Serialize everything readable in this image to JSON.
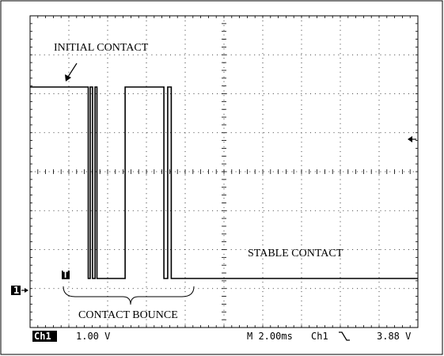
{
  "annotations": {
    "initial_contact": "INITIAL CONTACT",
    "stable_contact": "STABLE CONTACT",
    "contact_bounce": "CONTACT BOUNCE"
  },
  "markers": {
    "channel_ground": "1",
    "trigger_point": "T"
  },
  "status_bar": {
    "channel": "Ch1",
    "volts_per_div": "1.00 V",
    "timebase": "M 2.00ms",
    "trigger_source": "Ch1",
    "trigger_level": "3.88 V"
  },
  "chart_data": {
    "type": "line",
    "grid": true,
    "divisions": {
      "x": 10,
      "y": 8
    },
    "series": [
      {
        "x": [
          0,
          3.0,
          3.0,
          3.1,
          3.1,
          3.22,
          3.22,
          3.35,
          3.35,
          3.45,
          3.45,
          4.9,
          4.9,
          6.9,
          6.9,
          7.1,
          7.1,
          7.28,
          7.28,
          7.45,
          7.45,
          20
        ],
        "y": [
          4.5,
          4.5,
          0,
          0,
          4.5,
          4.5,
          0,
          0,
          4.5,
          4.5,
          0,
          0,
          4.5,
          4.5,
          0,
          0,
          4.5,
          4.5,
          0,
          0,
          0,
          0
        ]
      }
    ],
    "xlabel": "",
    "ylabel": ""
  },
  "colors": {
    "trace": "#000000",
    "grid": "#000000",
    "background": "#ffffff",
    "badge": "#000000"
  }
}
